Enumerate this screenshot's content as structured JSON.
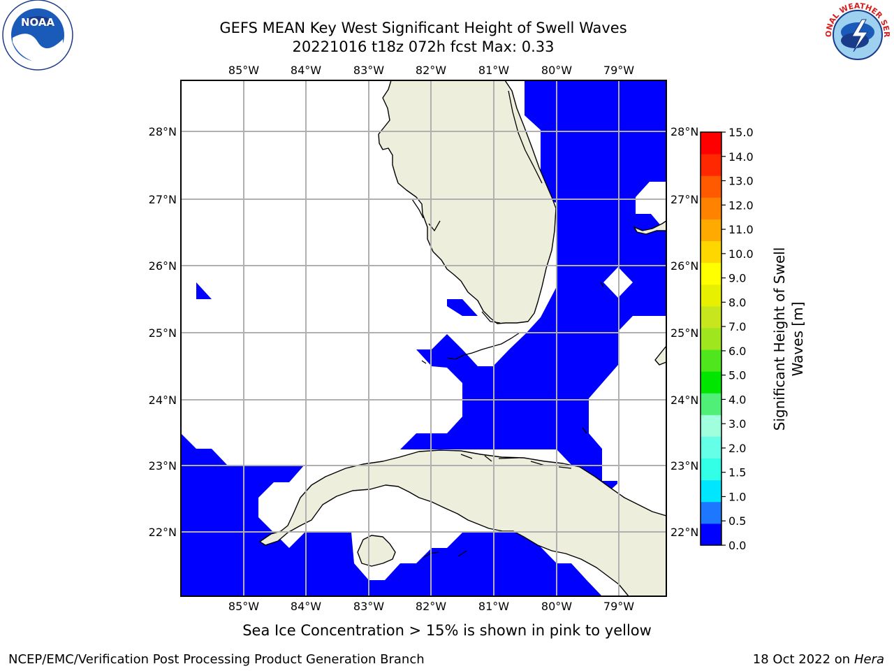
{
  "title_line1": "GEFS MEAN Key West Significant Height of Swell Waves",
  "title_line2": "20221016 t18z 072h fcst   Max: 0.33",
  "map": {
    "lon_labels": [
      "85°W",
      "84°W",
      "83°W",
      "82°W",
      "81°W",
      "80°W",
      "79°W"
    ],
    "lat_labels": [
      "28°N",
      "27°N",
      "26°N",
      "25°N",
      "24°N",
      "23°N",
      "22°N"
    ],
    "colors": {
      "land": "#eeeedc",
      "swell_0_0.5": "#0000ff",
      "grid": "#b0b0b0"
    }
  },
  "colorbar": {
    "label_line1": "Significant Height of Swell",
    "label_line2": "Waves [m]",
    "ticks": [
      "0.0",
      "0.5",
      "1.0",
      "1.5",
      "2.0",
      "3.0",
      "4.0",
      "5.0",
      "6.0",
      "7.0",
      "8.0",
      "9.0",
      "10.0",
      "11.0",
      "12.0",
      "13.0",
      "14.0",
      "15.0"
    ],
    "colors": [
      "#0000ff",
      "#1e78ff",
      "#00e6ff",
      "#32ffe6",
      "#64ffe6",
      "#a0ffdc",
      "#50f078",
      "#00e600",
      "#50e61e",
      "#a0e61e",
      "#c8e61e",
      "#e6f000",
      "#ffff00",
      "#ffd700",
      "#ffaa00",
      "#ff8200",
      "#ff5a00",
      "#ff2800",
      "#ff0000"
    ]
  },
  "note": "Sea Ice Concentration > 15% is shown in pink to yellow",
  "footer_left": "NCEP/EMC/Verification Post Processing Product Generation Branch",
  "footer_right_prefix": "18 Oct 2022 on ",
  "footer_right_host": "Hera",
  "logos": {
    "left": "NOAA",
    "right": "NATIONAL WEATHER SERVICE"
  }
}
